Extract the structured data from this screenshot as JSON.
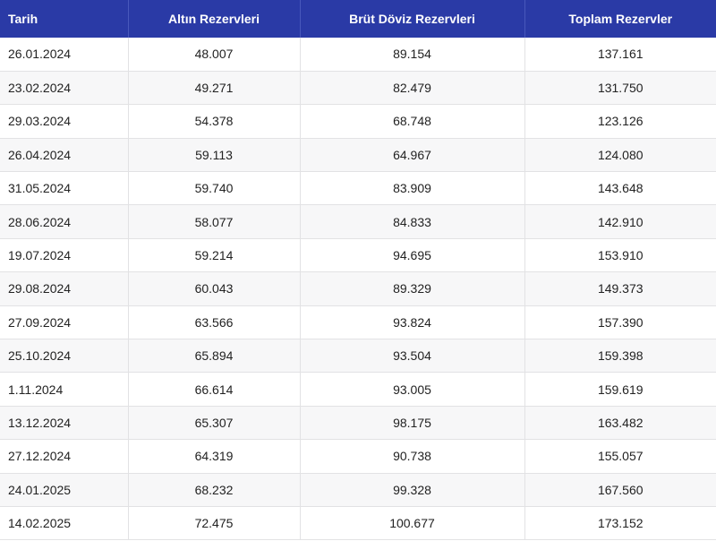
{
  "table": {
    "columns": [
      "Tarih",
      "Altın Rezervleri",
      "Brüt Döviz Rezervleri",
      "Toplam Rezervler"
    ],
    "rows": [
      [
        "26.01.2024",
        "48.007",
        "89.154",
        "137.161"
      ],
      [
        "23.02.2024",
        "49.271",
        "82.479",
        "131.750"
      ],
      [
        "29.03.2024",
        "54.378",
        "68.748",
        "123.126"
      ],
      [
        "26.04.2024",
        "59.113",
        "64.967",
        "124.080"
      ],
      [
        "31.05.2024",
        "59.740",
        "83.909",
        "143.648"
      ],
      [
        "28.06.2024",
        "58.077",
        "84.833",
        "142.910"
      ],
      [
        "19.07.2024",
        "59.214",
        "94.695",
        "153.910"
      ],
      [
        "29.08.2024",
        "60.043",
        "89.329",
        "149.373"
      ],
      [
        "27.09.2024",
        "63.566",
        "93.824",
        "157.390"
      ],
      [
        "25.10.2024",
        "65.894",
        "93.504",
        "159.398"
      ],
      [
        "1.11.2024",
        "66.614",
        "93.005",
        "159.619"
      ],
      [
        "13.12.2024",
        "65.307",
        "98.175",
        "163.482"
      ],
      [
        "27.12.2024",
        "64.319",
        "90.738",
        "155.057"
      ],
      [
        "24.01.2025",
        "68.232",
        "99.328",
        "167.560"
      ],
      [
        "14.02.2025",
        "72.475",
        "100.677",
        "173.152"
      ]
    ]
  },
  "colors": {
    "header_bg": "#2a3aa6",
    "header_text": "#ffffff",
    "row_alt_bg": "#f7f7f8",
    "border": "#e2e2e4"
  }
}
